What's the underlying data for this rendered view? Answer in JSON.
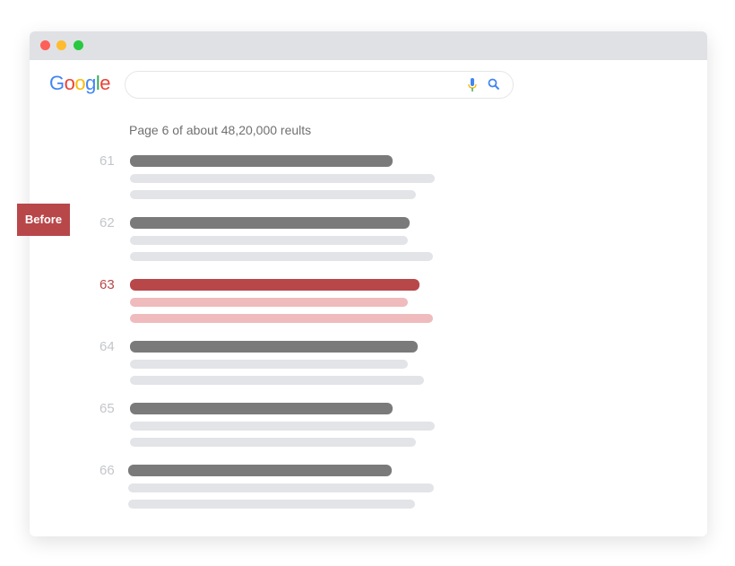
{
  "window": {
    "controls": [
      "close",
      "minimize",
      "maximize"
    ],
    "colors": {
      "close": "#fe5f57",
      "minimize": "#febc2e",
      "maximize": "#28c840"
    }
  },
  "logo": {
    "text": "Google"
  },
  "search": {
    "value": "",
    "mic_icon": "microphone-icon",
    "search_icon": "magnifier-icon"
  },
  "stats": "Page 6 of about 48,20,000 reults",
  "results": [
    {
      "number": "61",
      "highlighted": false
    },
    {
      "number": "62",
      "highlighted": false
    },
    {
      "number": "63",
      "highlighted": true
    },
    {
      "number": "64",
      "highlighted": false
    },
    {
      "number": "65",
      "highlighted": false
    },
    {
      "number": "66",
      "highlighted": false
    }
  ],
  "badge": "Before",
  "colors": {
    "accent": "#b8474a",
    "title_bar": "#7a7a7a",
    "snippet_bar": "#e3e4e8",
    "highlight_snippet": "#efbbbd"
  }
}
